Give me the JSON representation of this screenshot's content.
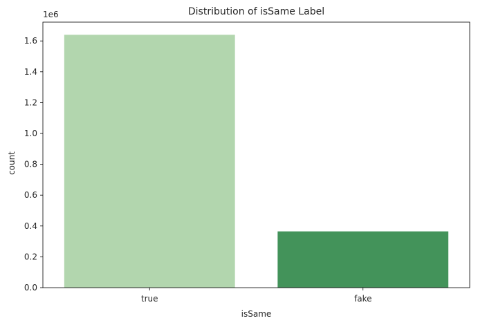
{
  "chart_data": {
    "type": "bar",
    "title": "Distribution of isSame Label",
    "xlabel": "isSame",
    "ylabel": "count",
    "y_offset_label": "1e6",
    "categories": [
      "true",
      "fake"
    ],
    "values": [
      1640000,
      365000
    ],
    "ylim": [
      0,
      1722000
    ],
    "yticks": [
      0,
      200000,
      400000,
      600000,
      800000,
      1000000,
      1200000,
      1400000,
      1600000
    ],
    "ytick_labels": [
      "0.0",
      "0.2",
      "0.4",
      "0.6",
      "0.8",
      "1.0",
      "1.2",
      "1.4",
      "1.6"
    ],
    "colors": [
      "#b2d6ae",
      "#43935a"
    ],
    "grid": false,
    "legend": false
  }
}
